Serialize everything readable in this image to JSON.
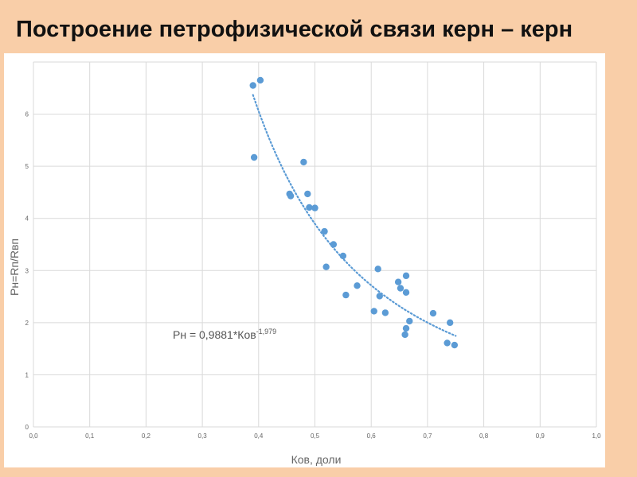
{
  "slide": {
    "title": "Построение петрофизической связи керн – керн"
  },
  "chart_data": {
    "type": "scatter",
    "xlabel": "Ков, доли",
    "ylabel": "Pн=Rп/Rвп",
    "xlim": [
      0.0,
      1.0
    ],
    "ylim": [
      0,
      7
    ],
    "x_ticks": [
      "0,0",
      "0,1",
      "0,2",
      "0,3",
      "0,4",
      "0,5",
      "0,6",
      "0,7",
      "0,8",
      "0,9",
      "1,0"
    ],
    "y_ticks": [
      "0",
      "1",
      "2",
      "3",
      "4",
      "5",
      "6"
    ],
    "grid": true,
    "point_color": "#5b9bd5",
    "trendline": {
      "type": "power",
      "a": 0.9881,
      "b": -1.979,
      "x_range": [
        0.39,
        0.75
      ],
      "style": "dotted",
      "equation_main": "Pн = 0,9881*Ков",
      "equation_exponent": "-1,979"
    },
    "points": [
      {
        "x": 0.39,
        "y": 6.55
      },
      {
        "x": 0.403,
        "y": 6.65
      },
      {
        "x": 0.392,
        "y": 5.17
      },
      {
        "x": 0.48,
        "y": 5.08
      },
      {
        "x": 0.455,
        "y": 4.47
      },
      {
        "x": 0.457,
        "y": 4.43
      },
      {
        "x": 0.487,
        "y": 4.47
      },
      {
        "x": 0.49,
        "y": 4.21
      },
      {
        "x": 0.5,
        "y": 4.2
      },
      {
        "x": 0.517,
        "y": 3.75
      },
      {
        "x": 0.533,
        "y": 3.5
      },
      {
        "x": 0.55,
        "y": 3.28
      },
      {
        "x": 0.52,
        "y": 3.07
      },
      {
        "x": 0.575,
        "y": 2.71
      },
      {
        "x": 0.555,
        "y": 2.53
      },
      {
        "x": 0.612,
        "y": 3.03
      },
      {
        "x": 0.615,
        "y": 2.51
      },
      {
        "x": 0.605,
        "y": 2.22
      },
      {
        "x": 0.625,
        "y": 2.19
      },
      {
        "x": 0.648,
        "y": 2.78
      },
      {
        "x": 0.652,
        "y": 2.66
      },
      {
        "x": 0.662,
        "y": 2.9
      },
      {
        "x": 0.662,
        "y": 2.58
      },
      {
        "x": 0.668,
        "y": 2.03
      },
      {
        "x": 0.662,
        "y": 1.89
      },
      {
        "x": 0.66,
        "y": 1.77
      },
      {
        "x": 0.71,
        "y": 2.18
      },
      {
        "x": 0.74,
        "y": 2.0
      },
      {
        "x": 0.735,
        "y": 1.61
      },
      {
        "x": 0.748,
        "y": 1.57
      }
    ]
  }
}
